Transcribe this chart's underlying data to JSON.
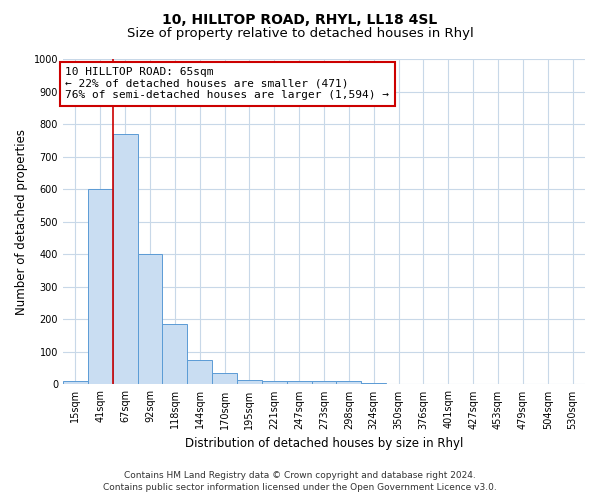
{
  "title": "10, HILLTOP ROAD, RHYL, LL18 4SL",
  "subtitle": "Size of property relative to detached houses in Rhyl",
  "xlabel": "Distribution of detached houses by size in Rhyl",
  "ylabel": "Number of detached properties",
  "categories": [
    "15sqm",
    "41sqm",
    "67sqm",
    "92sqm",
    "118sqm",
    "144sqm",
    "170sqm",
    "195sqm",
    "221sqm",
    "247sqm",
    "273sqm",
    "298sqm",
    "324sqm",
    "350sqm",
    "376sqm",
    "401sqm",
    "427sqm",
    "453sqm",
    "479sqm",
    "504sqm",
    "530sqm"
  ],
  "values": [
    12,
    600,
    770,
    400,
    185,
    75,
    35,
    15,
    10,
    10,
    10,
    10,
    3,
    0,
    0,
    0,
    0,
    0,
    0,
    0,
    0
  ],
  "bar_color": "#c9ddf2",
  "bar_edge_color": "#5b9bd5",
  "ylim": [
    0,
    1000
  ],
  "yticks": [
    0,
    100,
    200,
    300,
    400,
    500,
    600,
    700,
    800,
    900,
    1000
  ],
  "red_line_x": 1.5,
  "annotation_text_line1": "10 HILLTOP ROAD: 65sqm",
  "annotation_text_line2": "← 22% of detached houses are smaller (471)",
  "annotation_text_line3": "76% of semi-detached houses are larger (1,594) →",
  "annotation_box_color": "#ffffff",
  "annotation_box_edge": "#cc0000",
  "footer_line1": "Contains HM Land Registry data © Crown copyright and database right 2024.",
  "footer_line2": "Contains public sector information licensed under the Open Government Licence v3.0.",
  "background_color": "#ffffff",
  "grid_color": "#c8d8e8",
  "title_fontsize": 10,
  "subtitle_fontsize": 9.5,
  "tick_fontsize": 7,
  "ylabel_fontsize": 8.5,
  "xlabel_fontsize": 8.5,
  "annotation_fontsize": 8,
  "footer_fontsize": 6.5
}
